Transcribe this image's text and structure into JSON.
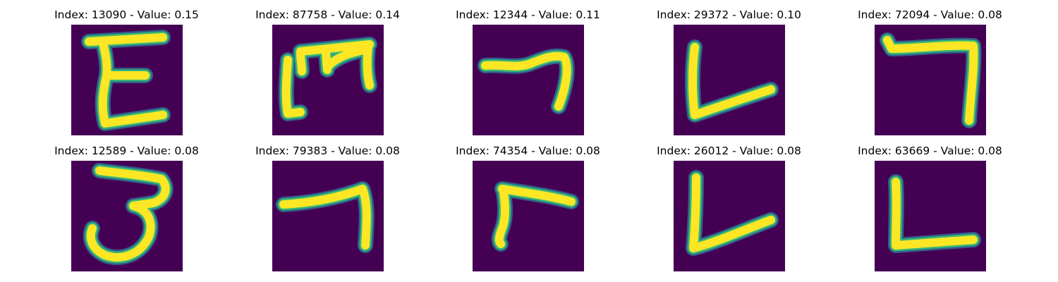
{
  "colors": {
    "background": "#440154",
    "stroke_core": "#fde725",
    "stroke_edge": "#35b779",
    "stroke_halo": "#31688e"
  },
  "panels": [
    {
      "title": "Index: 13090 - Value: 0.15",
      "index": 13090,
      "value": 0.15
    },
    {
      "title": "Index: 87758 - Value: 0.14",
      "index": 87758,
      "value": 0.14
    },
    {
      "title": "Index: 12344 - Value: 0.11",
      "index": 12344,
      "value": 0.11
    },
    {
      "title": "Index: 29372 - Value: 0.10",
      "index": 29372,
      "value": 0.1
    },
    {
      "title": "Index: 72094 - Value: 0.08",
      "index": 72094,
      "value": 0.08
    },
    {
      "title": "Index: 12589 - Value: 0.08",
      "index": 12589,
      "value": 0.08
    },
    {
      "title": "Index: 79383 - Value: 0.08",
      "index": 79383,
      "value": 0.08
    },
    {
      "title": "Index: 74354 - Value: 0.08",
      "index": 74354,
      "value": 0.08
    },
    {
      "title": "Index: 26012 - Value: 0.08",
      "index": 26012,
      "value": 0.08
    },
    {
      "title": "Index: 63669 - Value: 0.08",
      "index": 63669,
      "value": 0.08
    }
  ]
}
